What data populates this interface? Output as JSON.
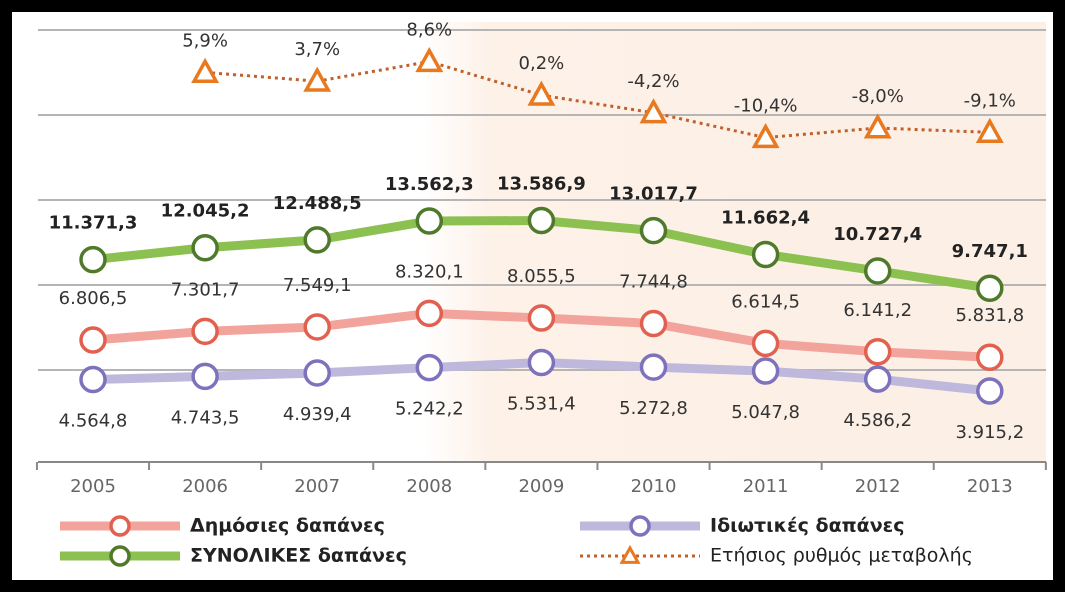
{
  "chart_data": {
    "type": "line",
    "categories": [
      "2005",
      "2006",
      "2007",
      "2008",
      "2009",
      "2010",
      "2011",
      "2012",
      "2013"
    ],
    "ylim": [
      0,
      24400
    ],
    "y2lim": [
      -91,
      16.5
    ],
    "series": [
      {
        "name": "Δημόσιες δαπάνες",
        "color": "#f2a49c",
        "marker_color": "#e2604f",
        "values": [
          6806.5,
          7301.7,
          7549.1,
          8320.1,
          8055.5,
          7744.8,
          6614.5,
          6141.2,
          5831.8
        ],
        "value_labels": [
          "6.806,5",
          "7.301,7",
          "7.549,1",
          "8.320,1",
          "8.055,5",
          "7.744,8",
          "6.614,5",
          "6.141,2",
          "5.831,8"
        ]
      },
      {
        "name": "Ιδιωτικές δαπάνες",
        "color": "#bdb8dc",
        "marker_color": "#7d72bb",
        "values": [
          4564.8,
          4743.5,
          4939.4,
          5242.2,
          5531.4,
          5272.8,
          5047.8,
          4586.2,
          3915.2
        ],
        "value_labels": [
          "4.564,8",
          "4.743,5",
          "4.939,4",
          "5.242,2",
          "5.531,4",
          "5.272,8",
          "5.047,8",
          "4.586,2",
          "3.915,2"
        ]
      },
      {
        "name": "ΣΥΝΟΛΙΚΕΣ δαπάνες",
        "color": "#8cc152",
        "marker_color": "#4f7a2b",
        "values": [
          11371.3,
          12045.2,
          12488.5,
          13562.3,
          13586.9,
          13017.7,
          11662.4,
          10727.4,
          9747.1
        ],
        "value_labels": [
          "11.371,3",
          "12.045,2",
          "12.488,5",
          "13.562,3",
          "13.586,9",
          "13.017,7",
          "11.662,4",
          "10.727,4",
          "9.747,1"
        ]
      },
      {
        "name": "Ετήσιος ρυθμός μεταβολής",
        "color": "#c0602a",
        "marker_color": "#e8791f",
        "axis": "y2",
        "values": [
          null,
          5.9,
          3.7,
          8.6,
          0.2,
          -4.2,
          -10.4,
          -8.0,
          -9.1
        ],
        "value_labels": [
          null,
          "5,9%",
          "3,7%",
          "8,6%",
          "0,2%",
          "-4,2%",
          "-10,4%",
          "-8,0%",
          "-9,1%"
        ]
      }
    ]
  }
}
